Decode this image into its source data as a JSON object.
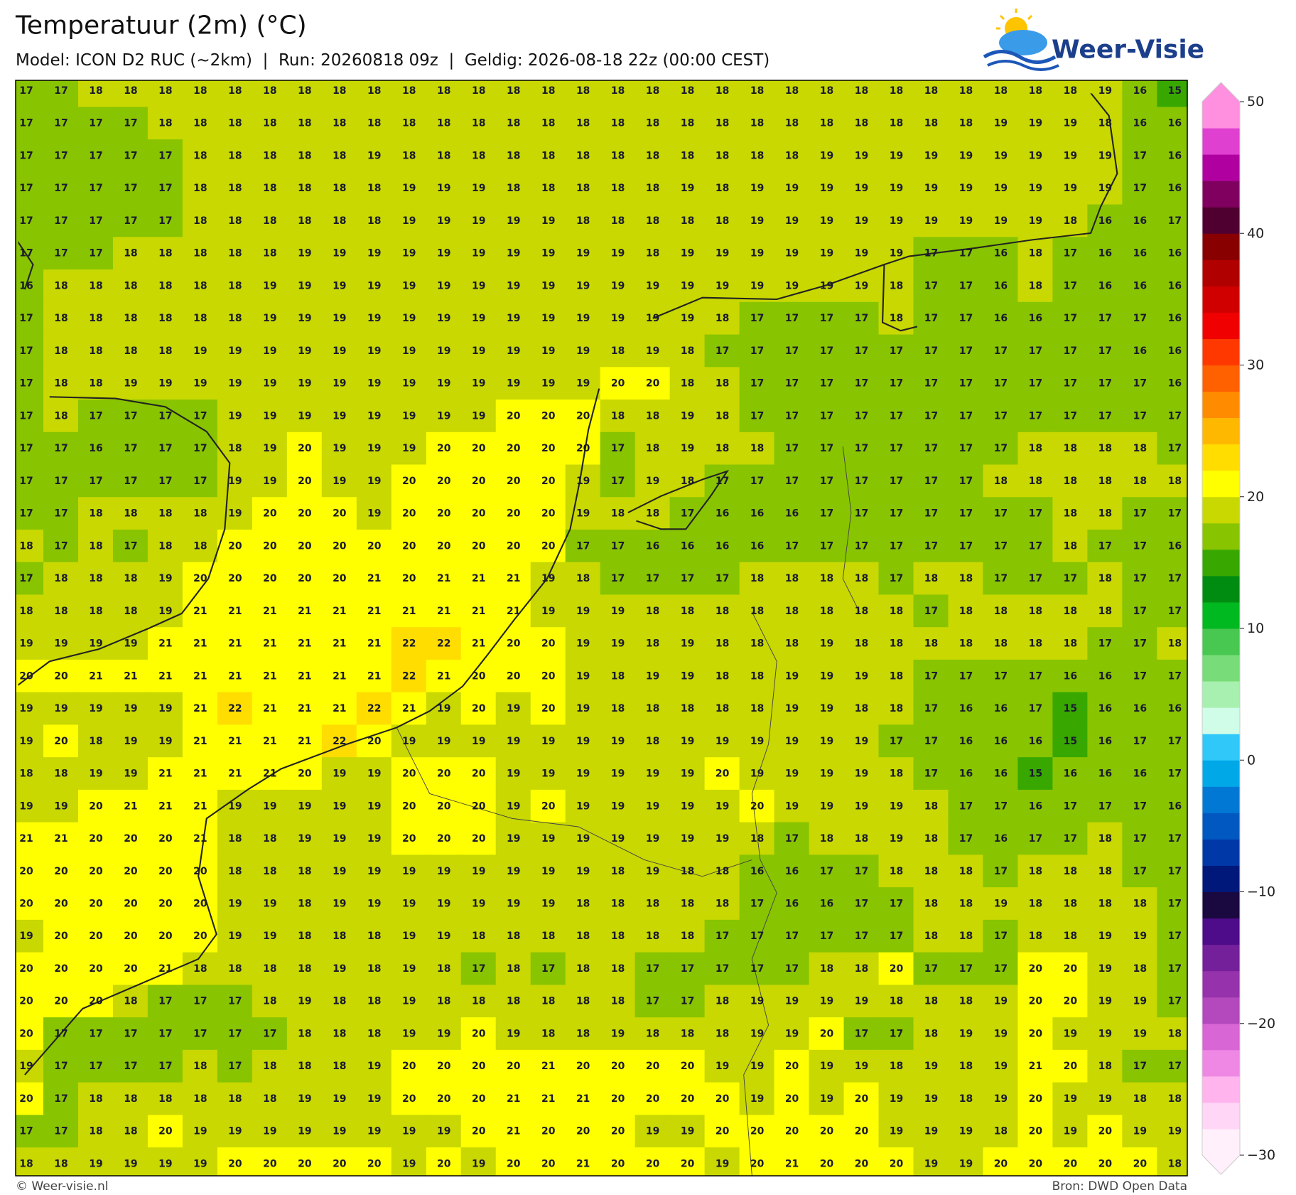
{
  "header": {
    "title": "Temperatuur (2m) (°C)",
    "subtitle": "Model: ICON D2 RUC (~2km)  |  Run: 20260818 09z  |  Geldig: 2026-08-18 22z (00:00 CEST)"
  },
  "logo": {
    "text": "Weer-Visie"
  },
  "map": {
    "grid": [
      [
        17,
        17,
        18,
        18,
        18,
        18,
        18,
        18,
        18,
        18,
        18,
        18,
        18,
        18,
        18,
        18,
        18,
        18,
        18,
        18,
        18,
        18,
        18,
        18,
        18,
        18,
        18,
        18,
        18,
        18,
        18,
        19,
        16,
        15
      ],
      [
        17,
        17,
        17,
        17,
        18,
        18,
        18,
        18,
        18,
        18,
        18,
        18,
        18,
        18,
        18,
        18,
        18,
        18,
        18,
        18,
        18,
        18,
        18,
        18,
        18,
        18,
        18,
        18,
        19,
        19,
        19,
        18,
        16,
        16
      ],
      [
        17,
        17,
        17,
        17,
        17,
        18,
        18,
        18,
        18,
        18,
        19,
        18,
        18,
        18,
        18,
        18,
        18,
        18,
        18,
        18,
        18,
        18,
        18,
        19,
        19,
        19,
        19,
        19,
        19,
        19,
        19,
        19,
        17,
        16
      ],
      [
        17,
        17,
        17,
        17,
        17,
        18,
        18,
        18,
        18,
        18,
        18,
        19,
        19,
        19,
        18,
        18,
        18,
        18,
        18,
        19,
        18,
        19,
        19,
        19,
        19,
        19,
        19,
        19,
        19,
        19,
        19,
        19,
        17,
        16
      ],
      [
        17,
        17,
        17,
        17,
        17,
        18,
        18,
        18,
        18,
        18,
        18,
        19,
        19,
        19,
        19,
        19,
        18,
        18,
        18,
        18,
        18,
        19,
        19,
        19,
        19,
        19,
        19,
        19,
        19,
        19,
        18,
        16,
        16,
        17
      ],
      [
        17,
        17,
        17,
        18,
        18,
        18,
        18,
        18,
        19,
        19,
        19,
        19,
        19,
        19,
        19,
        19,
        19,
        19,
        18,
        19,
        19,
        19,
        19,
        19,
        19,
        19,
        17,
        17,
        16,
        18,
        17,
        16,
        16,
        16
      ],
      [
        16,
        18,
        18,
        18,
        18,
        18,
        18,
        19,
        19,
        19,
        19,
        19,
        19,
        19,
        19,
        19,
        19,
        19,
        19,
        19,
        19,
        19,
        19,
        19,
        19,
        18,
        17,
        17,
        16,
        18,
        17,
        16,
        16,
        16
      ],
      [
        17,
        18,
        18,
        18,
        18,
        18,
        18,
        19,
        19,
        19,
        19,
        19,
        19,
        19,
        19,
        19,
        19,
        19,
        19,
        19,
        18,
        17,
        17,
        17,
        17,
        18,
        17,
        17,
        16,
        16,
        17,
        17,
        17,
        16
      ],
      [
        17,
        18,
        18,
        18,
        18,
        19,
        19,
        19,
        19,
        19,
        19,
        19,
        19,
        19,
        19,
        19,
        19,
        18,
        19,
        18,
        17,
        17,
        17,
        17,
        17,
        17,
        17,
        17,
        17,
        17,
        17,
        17,
        16,
        16
      ],
      [
        17,
        18,
        18,
        19,
        19,
        19,
        19,
        19,
        19,
        19,
        19,
        19,
        19,
        19,
        19,
        19,
        19,
        20,
        20,
        18,
        18,
        17,
        17,
        17,
        17,
        17,
        17,
        17,
        17,
        17,
        17,
        17,
        17,
        16
      ],
      [
        17,
        18,
        17,
        17,
        17,
        17,
        19,
        19,
        19,
        19,
        19,
        19,
        19,
        19,
        20,
        20,
        20,
        18,
        18,
        19,
        18,
        17,
        17,
        17,
        17,
        17,
        17,
        17,
        17,
        17,
        17,
        17,
        17,
        17
      ],
      [
        17,
        17,
        16,
        17,
        17,
        17,
        18,
        19,
        20,
        19,
        19,
        19,
        20,
        20,
        20,
        20,
        20,
        17,
        18,
        19,
        18,
        18,
        17,
        17,
        17,
        17,
        17,
        17,
        17,
        18,
        18,
        18,
        18,
        17
      ],
      [
        17,
        17,
        17,
        17,
        17,
        17,
        19,
        19,
        20,
        19,
        19,
        20,
        20,
        20,
        20,
        20,
        19,
        17,
        19,
        18,
        17,
        17,
        17,
        17,
        17,
        17,
        17,
        17,
        18,
        18,
        18,
        18,
        18,
        18
      ],
      [
        17,
        17,
        18,
        18,
        18,
        18,
        19,
        20,
        20,
        20,
        19,
        20,
        20,
        20,
        20,
        20,
        19,
        18,
        18,
        17,
        16,
        16,
        16,
        17,
        17,
        17,
        17,
        17,
        17,
        17,
        18,
        18,
        17,
        17
      ],
      [
        18,
        17,
        18,
        17,
        18,
        18,
        20,
        20,
        20,
        20,
        20,
        20,
        20,
        20,
        20,
        20,
        17,
        17,
        16,
        16,
        16,
        16,
        17,
        17,
        17,
        17,
        17,
        17,
        17,
        17,
        18,
        17,
        17,
        16
      ],
      [
        17,
        18,
        18,
        18,
        19,
        20,
        20,
        20,
        20,
        20,
        21,
        20,
        21,
        21,
        21,
        19,
        18,
        17,
        17,
        17,
        17,
        18,
        18,
        18,
        18,
        17,
        18,
        18,
        17,
        17,
        17,
        18,
        17,
        17
      ],
      [
        18,
        18,
        18,
        18,
        19,
        21,
        21,
        21,
        21,
        21,
        21,
        21,
        21,
        21,
        21,
        19,
        19,
        19,
        18,
        18,
        18,
        18,
        18,
        18,
        18,
        18,
        17,
        18,
        18,
        18,
        18,
        18,
        17,
        17
      ],
      [
        19,
        19,
        19,
        19,
        21,
        21,
        21,
        21,
        21,
        21,
        21,
        22,
        22,
        21,
        20,
        20,
        19,
        19,
        18,
        19,
        18,
        18,
        18,
        19,
        18,
        18,
        18,
        18,
        18,
        18,
        18,
        17,
        17,
        18
      ],
      [
        20,
        20,
        21,
        21,
        21,
        21,
        21,
        21,
        21,
        21,
        21,
        22,
        21,
        20,
        20,
        20,
        19,
        18,
        19,
        19,
        18,
        18,
        19,
        19,
        19,
        18,
        17,
        17,
        17,
        17,
        16,
        16,
        17,
        17
      ],
      [
        19,
        19,
        19,
        19,
        19,
        21,
        22,
        21,
        21,
        21,
        22,
        21,
        19,
        20,
        19,
        20,
        19,
        18,
        18,
        18,
        18,
        18,
        19,
        19,
        18,
        18,
        17,
        16,
        16,
        17,
        15,
        16,
        16,
        16
      ],
      [
        19,
        20,
        18,
        19,
        19,
        21,
        21,
        21,
        21,
        22,
        20,
        19,
        19,
        19,
        19,
        19,
        19,
        19,
        18,
        19,
        19,
        19,
        19,
        19,
        19,
        17,
        17,
        16,
        16,
        16,
        15,
        16,
        17,
        17
      ],
      [
        18,
        18,
        19,
        19,
        21,
        21,
        21,
        21,
        20,
        19,
        19,
        20,
        20,
        20,
        19,
        19,
        19,
        19,
        19,
        19,
        20,
        19,
        19,
        19,
        19,
        18,
        17,
        16,
        16,
        15,
        16,
        16,
        16,
        17
      ],
      [
        19,
        19,
        20,
        21,
        21,
        21,
        19,
        19,
        19,
        19,
        19,
        20,
        20,
        20,
        19,
        20,
        19,
        19,
        19,
        19,
        19,
        20,
        19,
        19,
        19,
        19,
        18,
        17,
        17,
        16,
        17,
        17,
        17,
        16
      ],
      [
        21,
        21,
        20,
        20,
        20,
        21,
        18,
        18,
        19,
        19,
        19,
        20,
        20,
        20,
        19,
        19,
        19,
        19,
        19,
        19,
        19,
        18,
        17,
        18,
        18,
        19,
        18,
        17,
        16,
        17,
        17,
        18,
        17,
        17
      ],
      [
        20,
        20,
        20,
        20,
        20,
        20,
        18,
        18,
        18,
        19,
        19,
        19,
        19,
        19,
        19,
        19,
        19,
        18,
        19,
        18,
        18,
        16,
        16,
        17,
        17,
        18,
        18,
        18,
        17,
        18,
        18,
        18,
        17,
        17
      ],
      [
        20,
        20,
        20,
        20,
        20,
        20,
        19,
        19,
        18,
        19,
        19,
        19,
        19,
        19,
        19,
        19,
        18,
        18,
        18,
        18,
        18,
        17,
        16,
        16,
        17,
        17,
        18,
        18,
        19,
        18,
        18,
        18,
        18,
        17
      ],
      [
        19,
        20,
        20,
        20,
        20,
        20,
        19,
        19,
        18,
        18,
        18,
        19,
        19,
        18,
        18,
        18,
        18,
        18,
        18,
        18,
        17,
        17,
        17,
        17,
        17,
        17,
        18,
        18,
        17,
        18,
        18,
        19,
        19,
        17
      ],
      [
        20,
        20,
        20,
        20,
        21,
        18,
        18,
        18,
        18,
        19,
        18,
        19,
        18,
        17,
        18,
        17,
        18,
        18,
        17,
        17,
        17,
        17,
        17,
        18,
        18,
        20,
        17,
        17,
        17,
        20,
        20,
        19,
        18,
        17
      ],
      [
        20,
        20,
        20,
        18,
        17,
        17,
        17,
        18,
        19,
        18,
        18,
        19,
        18,
        18,
        18,
        18,
        18,
        18,
        17,
        17,
        18,
        19,
        19,
        19,
        19,
        18,
        18,
        18,
        19,
        20,
        20,
        19,
        19,
        17
      ],
      [
        20,
        17,
        17,
        17,
        17,
        17,
        17,
        17,
        18,
        18,
        18,
        19,
        19,
        20,
        19,
        18,
        18,
        19,
        18,
        18,
        18,
        19,
        19,
        20,
        17,
        17,
        18,
        19,
        19,
        20,
        19,
        19,
        19,
        18
      ],
      [
        19,
        17,
        17,
        17,
        17,
        18,
        17,
        18,
        18,
        18,
        19,
        20,
        20,
        20,
        20,
        21,
        20,
        20,
        20,
        20,
        19,
        19,
        20,
        19,
        19,
        18,
        19,
        18,
        19,
        21,
        20,
        18,
        17,
        17
      ],
      [
        20,
        17,
        18,
        18,
        18,
        18,
        18,
        18,
        19,
        19,
        19,
        20,
        20,
        20,
        21,
        21,
        21,
        20,
        20,
        20,
        20,
        19,
        20,
        19,
        20,
        19,
        19,
        18,
        19,
        20,
        19,
        19,
        18,
        18
      ],
      [
        17,
        17,
        18,
        18,
        20,
        19,
        19,
        19,
        19,
        19,
        19,
        19,
        19,
        20,
        21,
        20,
        20,
        20,
        19,
        19,
        20,
        20,
        20,
        20,
        20,
        19,
        19,
        19,
        18,
        20,
        19,
        20,
        19,
        19
      ],
      [
        18,
        18,
        19,
        19,
        19,
        19,
        20,
        20,
        20,
        20,
        20,
        19,
        20,
        19,
        20,
        20,
        21,
        20,
        20,
        20,
        19,
        20,
        21,
        20,
        20,
        20,
        19,
        19,
        20,
        20,
        20,
        20,
        20,
        18
      ]
    ]
  },
  "colorbar": {
    "lim": [
      -30,
      50
    ],
    "ticks": [
      {
        "value": -30,
        "label": "−30"
      },
      {
        "value": -20,
        "label": "−20"
      },
      {
        "value": -10,
        "label": "−10"
      },
      0,
      10,
      20,
      30,
      40,
      50
    ],
    "colors": [
      "#fff0fb",
      "#ffd6f6",
      "#ffb4ee",
      "#ee88e4",
      "#d866d4",
      "#b448bd",
      "#9632ab",
      "#74209a",
      "#4e0c8a",
      "#1a0840",
      "#00187a",
      "#0038a8",
      "#0058c0",
      "#0078d4",
      "#00a8e8",
      "#30c8f8",
      "#d0fde8",
      "#a8f0b0",
      "#78dc78",
      "#48c850",
      "#00b820",
      "#008c10",
      "#38a800",
      "#88c400",
      "#c8d800",
      "#ffff00",
      "#ffdd00",
      "#ffb800",
      "#ff8c00",
      "#ff6000",
      "#ff3800",
      "#f00000",
      "#d00000",
      "#b00000",
      "#880000",
      "#500030",
      "#800060",
      "#b000a0",
      "#e040d0",
      "#ff90e0"
    ]
  },
  "footer": {
    "left": "© Weer-visie.nl",
    "right": "Bron: DWD Open Data"
  }
}
